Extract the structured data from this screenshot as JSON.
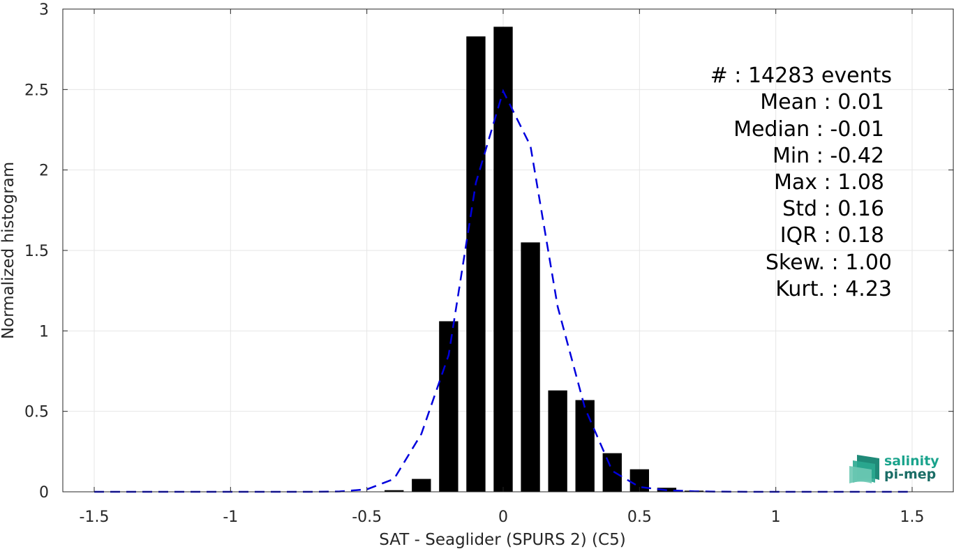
{
  "chart_data": {
    "type": "bar",
    "xlabel": "SAT - Seaglider (SPURS 2) (C5)",
    "ylabel": "Normalized histogram",
    "xlim": [
      -1.5,
      1.5
    ],
    "ylim": [
      0,
      3
    ],
    "x_ticks": [
      -1.5,
      -1,
      -0.5,
      0,
      0.5,
      1,
      1.5
    ],
    "x_tick_labels": [
      "-1.5",
      "-1",
      "-0.5",
      "0",
      "0.5",
      "1",
      "1.5"
    ],
    "y_ticks": [
      0,
      0.5,
      1,
      1.5,
      2,
      2.5,
      3
    ],
    "y_tick_labels": [
      "0",
      "0.5",
      "1",
      "1.5",
      "2",
      "2.5",
      "3"
    ],
    "grid": true,
    "bar_width": 0.07,
    "bars": {
      "x": [
        -0.4,
        -0.3,
        -0.2,
        -0.1,
        0.0,
        0.1,
        0.2,
        0.3,
        0.4,
        0.5,
        0.6,
        0.7
      ],
      "values": [
        0.01,
        0.08,
        1.06,
        2.83,
        2.89,
        1.55,
        0.63,
        0.57,
        0.24,
        0.14,
        0.025,
        0.007
      ],
      "color": "#000000"
    },
    "fit_curve": {
      "style": "dashed",
      "color": "#0000dd",
      "x": [
        -1.5,
        -1.4,
        -1.3,
        -1.2,
        -1.1,
        -1.0,
        -0.9,
        -0.8,
        -0.7,
        -0.6,
        -0.5,
        -0.4,
        -0.3,
        -0.2,
        -0.1,
        0.0,
        0.1,
        0.2,
        0.3,
        0.4,
        0.5,
        0.6,
        0.7,
        0.8,
        0.9,
        1.0,
        1.1,
        1.2,
        1.3,
        1.4,
        1.5
      ],
      "y": [
        0,
        0,
        0,
        0,
        0,
        0,
        0,
        0,
        0,
        0.002,
        0.015,
        0.08,
        0.36,
        0.85,
        1.92,
        2.49,
        2.15,
        1.15,
        0.52,
        0.13,
        0.03,
        0.01,
        0.003,
        0.001,
        0,
        0,
        0,
        0,
        0,
        0,
        0
      ]
    },
    "stats": [
      {
        "label": "#  : 14283 events"
      },
      {
        "label": "Mean : 0.01"
      },
      {
        "label": "Median : -0.01"
      },
      {
        "label": "Min : -0.42"
      },
      {
        "label": "Max : 1.08"
      },
      {
        "label": "Std : 0.16"
      },
      {
        "label": "IQR : 0.18"
      },
      {
        "label": "Skew. : 1.00"
      },
      {
        "label": "Kurt. : 4.23"
      }
    ]
  },
  "logo": {
    "line1": "salinity",
    "line2": "pi-mep",
    "color1": "#1aa38c",
    "color2": "#1a6d66"
  }
}
